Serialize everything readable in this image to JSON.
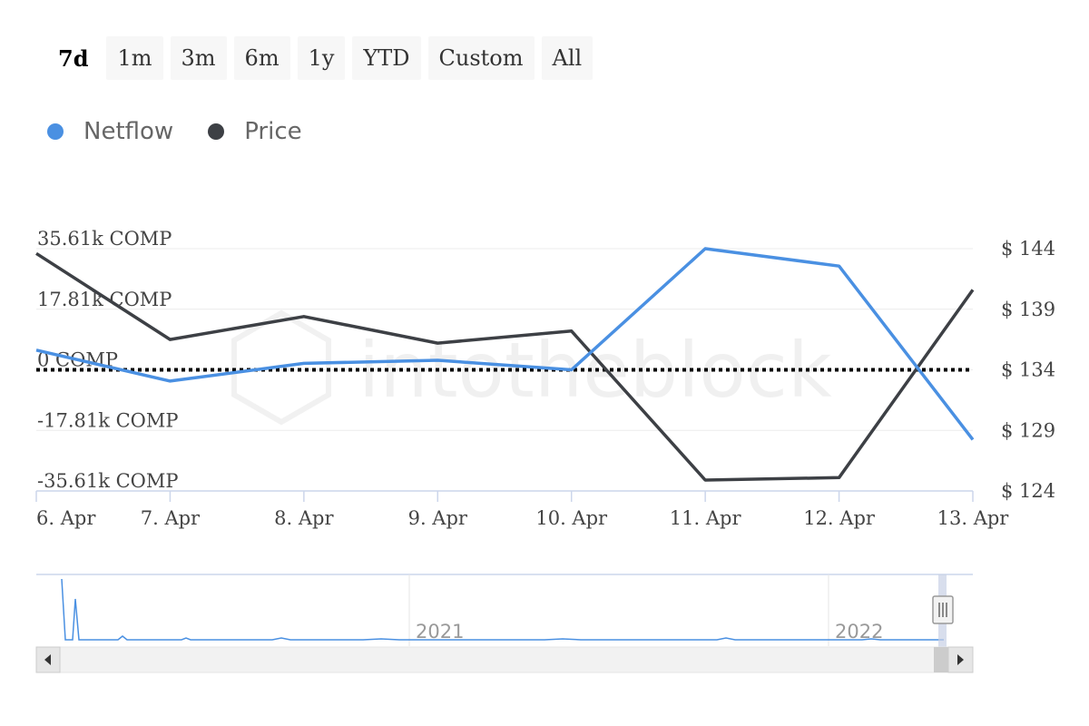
{
  "range_selector": {
    "buttons": [
      "7d",
      "1m",
      "3m",
      "6m",
      "1y",
      "YTD",
      "Custom",
      "All"
    ],
    "active": "7d"
  },
  "legend": [
    {
      "name": "Netflow",
      "color": "#4a90e2"
    },
    {
      "name": "Price",
      "color": "#3d4045"
    }
  ],
  "chart_data": {
    "type": "line",
    "x": [
      "6. Apr",
      "7. Apr",
      "8. Apr",
      "9. Apr",
      "10. Apr",
      "11. Apr",
      "12. Apr",
      "13. Apr"
    ],
    "left_axis": {
      "ticks": [
        "35.61k COMP",
        "17.81k COMP",
        "0 COMP",
        "-17.81k COMP",
        "-35.61k COMP"
      ],
      "range": [
        -35.61,
        35.61
      ]
    },
    "right_axis": {
      "ticks": [
        "$ 144",
        "$ 139",
        "$ 134",
        "$ 129",
        "$ 124"
      ],
      "range": [
        124,
        144
      ]
    },
    "series": [
      {
        "name": "Netflow",
        "axis": "left",
        "color": "#4a90e2",
        "values": [
          5.8,
          -3.3,
          1.9,
          2.8,
          0.0,
          35.6,
          30.5,
          -20.5
        ]
      },
      {
        "name": "Price",
        "axis": "right",
        "color": "#3d4045",
        "values": [
          143.6,
          136.5,
          138.4,
          136.2,
          137.2,
          124.9,
          125.1,
          140.6
        ]
      }
    ],
    "zero_line": {
      "style": "dotted",
      "color": "#000000"
    },
    "watermark": "intotheblock",
    "navigator": {
      "labels": [
        "2021",
        "2022"
      ]
    }
  }
}
